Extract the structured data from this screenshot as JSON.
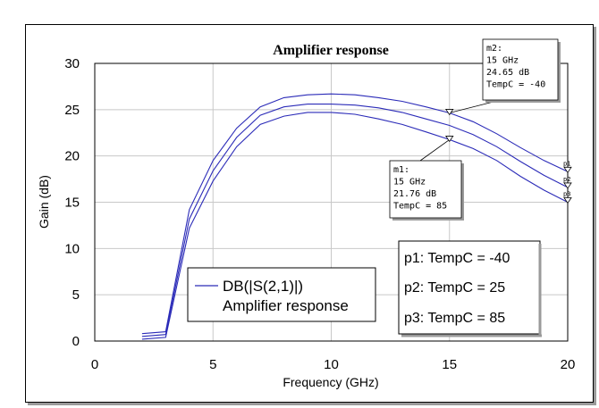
{
  "chart_data": {
    "type": "line",
    "title": "Amplifier response",
    "xlabel": "Frequency (GHz)",
    "ylabel": "Gain (dB)",
    "xlim": [
      0,
      20
    ],
    "ylim": [
      0,
      30
    ],
    "xticks": [
      "0",
      "5",
      "10",
      "15",
      "20"
    ],
    "yticks": [
      "0",
      "5",
      "10",
      "15",
      "20",
      "25",
      "30"
    ],
    "grid": true,
    "line_color": "#2b2bb8",
    "x": [
      2,
      3,
      4,
      5,
      6,
      7,
      8,
      9,
      10,
      11,
      12,
      13,
      14,
      15,
      16,
      17,
      18,
      19,
      20
    ],
    "series": [
      {
        "values": [
          0.8,
          1.0,
          14.2,
          19.5,
          23.0,
          25.3,
          26.3,
          26.6,
          26.7,
          26.6,
          26.3,
          25.9,
          25.3,
          24.65,
          23.7,
          22.4,
          20.9,
          19.5,
          18.3
        ]
      },
      {
        "values": [
          0.5,
          0.7,
          13.2,
          18.4,
          22.0,
          24.4,
          25.3,
          25.6,
          25.6,
          25.5,
          25.2,
          24.7,
          24.0,
          23.3,
          22.3,
          21.0,
          19.4,
          17.9,
          16.6
        ]
      },
      {
        "values": [
          0.2,
          0.4,
          12.2,
          17.3,
          21.0,
          23.4,
          24.3,
          24.7,
          24.7,
          24.5,
          24.0,
          23.4,
          22.6,
          21.76,
          20.8,
          19.5,
          17.8,
          16.3,
          15.0
        ]
      }
    ],
    "trace_tags": [
      "p1",
      "p2",
      "p3"
    ],
    "markers": [
      {
        "id": "m2",
        "x": 15,
        "y": 24.65,
        "lines": [
          "m2:",
          "15 GHz",
          "24.65 dB",
          "TempC = -40"
        ]
      },
      {
        "id": "m1",
        "x": 15,
        "y": 21.76,
        "lines": [
          "m1:",
          "15 GHz",
          "21.76 dB",
          "TempC = 85"
        ]
      }
    ],
    "legend": {
      "placement": "bottom-center",
      "expr": "DB(|S(2,1)|)",
      "name": "Amplifier response"
    },
    "param_box": {
      "placement": "bottom-right",
      "lines": [
        "p1: TempC = -40",
        "p2: TempC = 25",
        "p3: TempC = 85"
      ]
    }
  }
}
